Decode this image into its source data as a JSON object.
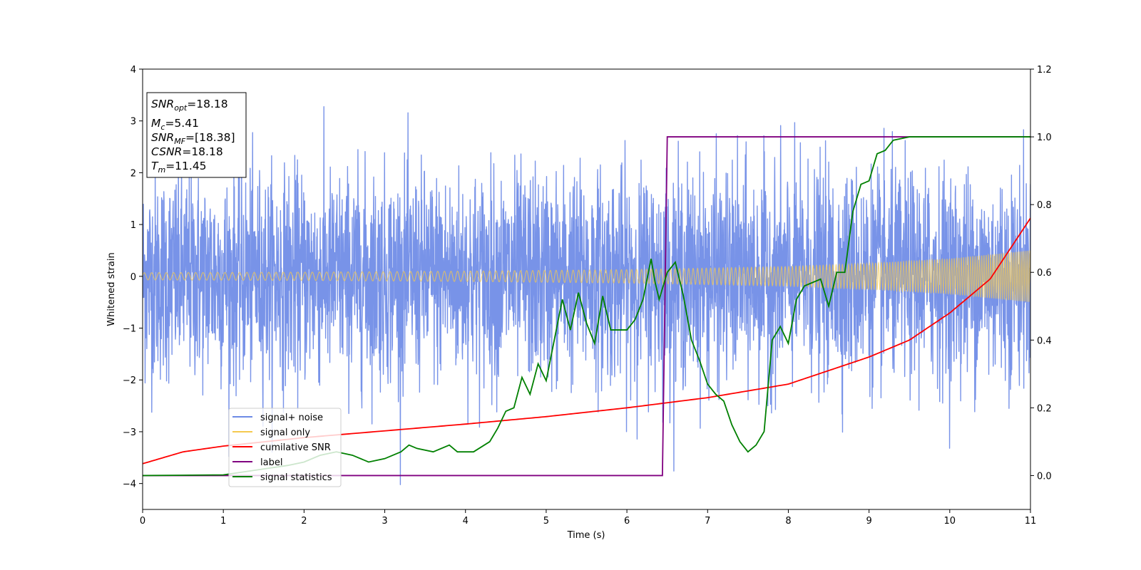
{
  "chart_data": {
    "type": "line",
    "title": "",
    "xlabel": "Time (s)",
    "ylabel": "Whitened strain",
    "xlim": [
      0,
      11
    ],
    "ylim": [
      -4.5,
      4
    ],
    "y2lim": [
      -0.1,
      1.2
    ],
    "xticks": [
      0,
      1,
      2,
      3,
      4,
      5,
      6,
      7,
      8,
      9,
      10,
      11
    ],
    "yticks": [
      -4,
      -3,
      -2,
      -1,
      0,
      1,
      2,
      3,
      4
    ],
    "y2ticks": [
      "0.0",
      "0.2",
      "0.4",
      "0.6",
      "0.8",
      "1.0",
      "1.2"
    ],
    "grid": false,
    "legend_position": "lower-left",
    "colors": {
      "signal_noise": "#6d8ae6",
      "signal_only": "#f5c94f",
      "cumulative_snr": "#ff0000",
      "label": "#800080",
      "signal_statistics": "#008000"
    },
    "info_box": {
      "snr_opt": {
        "base": "SNR",
        "sub": "opt",
        "value": "=18.18"
      },
      "mc": {
        "base": "M",
        "sub": "c",
        "value": "=5.41"
      },
      "snr_mf": {
        "base": "SNR",
        "sub": "MF",
        "value": "=[18.38]"
      },
      "csnr": {
        "base": "CSNR",
        "value": "=18.18"
      },
      "tm": {
        "base": "T",
        "sub": "m",
        "value": "=11.45"
      }
    },
    "series": [
      {
        "name": "signal+ noise",
        "axis": "left",
        "description_values": {
          "noise_std": 1.0,
          "x_range": [
            0,
            11
          ]
        }
      },
      {
        "name": "signal only",
        "axis": "left",
        "envelope": {
          "x": [
            0,
            2,
            4,
            6,
            8,
            9,
            10,
            11
          ],
          "amplitude": [
            0.07,
            0.08,
            0.1,
            0.13,
            0.19,
            0.25,
            0.34,
            0.5
          ]
        }
      },
      {
        "name": "cumilative SNR",
        "axis": "right",
        "x": [
          0,
          0.5,
          1,
          2,
          3,
          4,
          5,
          6,
          7,
          8,
          9,
          9.5,
          10,
          10.5,
          11
        ],
        "y": [
          0.035,
          0.07,
          0.087,
          0.112,
          0.132,
          0.152,
          0.174,
          0.2,
          0.23,
          0.27,
          0.35,
          0.4,
          0.48,
          0.58,
          0.76
        ]
      },
      {
        "name": "label",
        "axis": "right",
        "x": [
          0,
          6.44,
          6.5,
          11
        ],
        "y": [
          0.0,
          0.0,
          1.0,
          1.0
        ]
      },
      {
        "name": "signal statistics",
        "axis": "right",
        "x": [
          0,
          1.0,
          1.8,
          2.0,
          2.2,
          2.4,
          2.6,
          2.8,
          3.0,
          3.1,
          3.2,
          3.3,
          3.4,
          3.6,
          3.8,
          3.9,
          4.0,
          4.1,
          4.3,
          4.4,
          4.5,
          4.6,
          4.7,
          4.8,
          4.9,
          5.0,
          5.1,
          5.2,
          5.3,
          5.4,
          5.5,
          5.6,
          5.7,
          5.8,
          5.9,
          6.0,
          6.1,
          6.2,
          6.3,
          6.35,
          6.4,
          6.5,
          6.6,
          6.7,
          6.8,
          6.9,
          7.0,
          7.1,
          7.2,
          7.3,
          7.4,
          7.5,
          7.6,
          7.7,
          7.8,
          7.9,
          8.0,
          8.1,
          8.2,
          8.3,
          8.4,
          8.5,
          8.6,
          8.7,
          8.8,
          8.9,
          9.0,
          9.1,
          9.2,
          9.3,
          9.5,
          9.7,
          10.0,
          10.5,
          11.0
        ],
        "y": [
          0.0,
          0.002,
          0.03,
          0.04,
          0.06,
          0.07,
          0.06,
          0.04,
          0.05,
          0.06,
          0.07,
          0.09,
          0.08,
          0.07,
          0.09,
          0.07,
          0.07,
          0.07,
          0.1,
          0.14,
          0.19,
          0.2,
          0.29,
          0.24,
          0.33,
          0.28,
          0.4,
          0.52,
          0.43,
          0.54,
          0.45,
          0.39,
          0.53,
          0.43,
          0.43,
          0.43,
          0.46,
          0.52,
          0.64,
          0.57,
          0.52,
          0.6,
          0.63,
          0.53,
          0.4,
          0.34,
          0.27,
          0.24,
          0.22,
          0.15,
          0.1,
          0.07,
          0.09,
          0.13,
          0.4,
          0.44,
          0.39,
          0.52,
          0.56,
          0.57,
          0.58,
          0.5,
          0.6,
          0.6,
          0.78,
          0.86,
          0.87,
          0.95,
          0.96,
          0.99,
          1.0,
          1.0,
          1.0,
          1.0,
          1.0
        ]
      }
    ]
  }
}
